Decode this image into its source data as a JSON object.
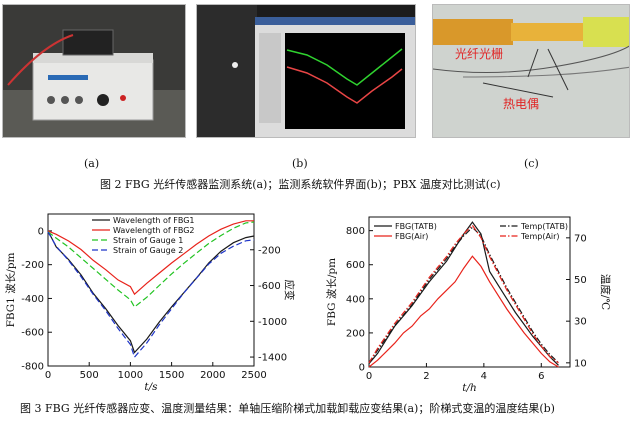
{
  "figure2": {
    "panel_labels": [
      "(a)",
      "(b)",
      "(c)"
    ],
    "photo_c_labels": {
      "grating": "光纤光栅",
      "thermocouple": "热电偶"
    },
    "caption": "图 2   FBG 光纤传感器监测系统(a)；监测系统软件界面(b)；PBX 温度对比测试(c)"
  },
  "figure3": {
    "caption": "图 3   FBG 光纤传感器应变、温度测量结果：单轴压缩阶梯式加载卸载应变结果(a)；阶梯式变温的温度结果(b)"
  },
  "chart_data": [
    {
      "type": "line",
      "xlabel": "t/s",
      "ylabel": "FBG1 波长/pm",
      "y2label": "应变",
      "xlim": [
        0,
        2500
      ],
      "ylim": [
        -800,
        100
      ],
      "y2lim": [
        -1500,
        200
      ],
      "xticks": [
        0,
        500,
        1000,
        1500,
        2000,
        2500
      ],
      "yticks": [
        0,
        -200,
        -400,
        -600,
        -800
      ],
      "y2ticks": [
        -200,
        -600,
        -1000,
        -1400
      ],
      "legend_position": "top-center",
      "series": [
        {
          "name": "Wavelength of FBG1",
          "axis": "left",
          "color": "#1a1a1a",
          "style": "solid",
          "x": [
            0,
            100,
            250,
            400,
            550,
            700,
            850,
            1000,
            1050,
            1200,
            1350,
            1500,
            1650,
            1800,
            1950,
            2100,
            2250,
            2400,
            2500
          ],
          "y": [
            0,
            -95,
            -170,
            -260,
            -370,
            -460,
            -560,
            -650,
            -720,
            -640,
            -540,
            -450,
            -365,
            -280,
            -190,
            -120,
            -70,
            -40,
            -30
          ]
        },
        {
          "name": "Wavelength of FBG2",
          "axis": "left",
          "color": "#e8231b",
          "style": "solid",
          "x": [
            0,
            100,
            250,
            400,
            550,
            700,
            850,
            1000,
            1050,
            1200,
            1350,
            1500,
            1650,
            1800,
            1950,
            2100,
            2250,
            2400,
            2500
          ],
          "y": [
            0,
            -20,
            -60,
            -110,
            -175,
            -230,
            -290,
            -330,
            -375,
            -310,
            -250,
            -190,
            -135,
            -80,
            -30,
            10,
            40,
            60,
            60
          ]
        },
        {
          "name": "Strain of Gauge 1",
          "axis": "right",
          "color": "#22c322",
          "style": "dashed",
          "x": [
            0,
            100,
            250,
            400,
            550,
            700,
            850,
            1000,
            1050,
            1200,
            1350,
            1500,
            1650,
            1800,
            1950,
            2100,
            2250,
            2400,
            2500
          ],
          "y": [
            0,
            -70,
            -170,
            -290,
            -410,
            -530,
            -650,
            -760,
            -840,
            -730,
            -600,
            -470,
            -350,
            -240,
            -130,
            -40,
            40,
            100,
            110
          ]
        },
        {
          "name": "Strain of Gauge 2",
          "axis": "right",
          "color": "#1f35c8",
          "style": "dashed",
          "x": [
            0,
            100,
            250,
            400,
            550,
            700,
            850,
            1000,
            1050,
            1200,
            1350,
            1500,
            1650,
            1800,
            1950,
            2100,
            2250,
            2400,
            2500
          ],
          "y": [
            0,
            -160,
            -320,
            -500,
            -700,
            -880,
            -1080,
            -1260,
            -1400,
            -1240,
            -1040,
            -860,
            -680,
            -520,
            -360,
            -240,
            -160,
            -100,
            -90
          ]
        }
      ]
    },
    {
      "type": "line",
      "xlabel": "t/h",
      "ylabel": "FBG 波长/pm",
      "y2label": "温度/℃",
      "xlim": [
        0,
        7
      ],
      "ylim": [
        0,
        880
      ],
      "y2lim": [
        8,
        80
      ],
      "xticks": [
        0,
        2,
        4,
        6
      ],
      "yticks": [
        0,
        200,
        400,
        600,
        800
      ],
      "y2ticks": [
        10,
        30,
        50,
        70
      ],
      "legend_position": "top-left and top-right",
      "series": [
        {
          "name": "FBG(TATB)",
          "axis": "left",
          "color": "#1a1a1a",
          "style": "solid",
          "x": [
            0,
            0.3,
            0.6,
            0.9,
            1.2,
            1.5,
            1.8,
            2.1,
            2.4,
            2.7,
            3.0,
            3.3,
            3.6,
            3.9,
            4.2,
            4.5,
            4.8,
            5.1,
            5.4,
            5.7,
            6.0,
            6.3,
            6.6
          ],
          "y": [
            20,
            80,
            160,
            240,
            300,
            360,
            430,
            500,
            560,
            620,
            700,
            780,
            850,
            780,
            560,
            480,
            400,
            320,
            250,
            180,
            120,
            60,
            10
          ]
        },
        {
          "name": "FBG(Air)",
          "axis": "left",
          "color": "#e8231b",
          "style": "solid",
          "x": [
            0,
            0.3,
            0.6,
            0.9,
            1.2,
            1.5,
            1.8,
            2.1,
            2.4,
            2.7,
            3.0,
            3.3,
            3.6,
            3.9,
            4.2,
            4.5,
            4.8,
            5.1,
            5.4,
            5.7,
            6.0,
            6.3,
            6.6
          ],
          "y": [
            0,
            40,
            90,
            140,
            200,
            240,
            300,
            340,
            400,
            450,
            500,
            580,
            650,
            590,
            500,
            420,
            340,
            270,
            200,
            140,
            80,
            30,
            0
          ]
        },
        {
          "name": "Temp(TATB)",
          "axis": "right",
          "color": "#1a1a1a",
          "style": "dashdot",
          "x": [
            0,
            0.3,
            0.6,
            0.9,
            1.2,
            1.5,
            1.8,
            2.1,
            2.4,
            2.7,
            3.0,
            3.3,
            3.6,
            3.9,
            4.2,
            4.5,
            4.8,
            5.1,
            5.4,
            5.7,
            6.0,
            6.3,
            6.6
          ],
          "y": [
            10,
            16,
            22,
            28,
            33,
            38,
            44,
            50,
            55,
            60,
            66,
            71,
            75,
            71,
            62,
            54,
            46,
            39,
            32,
            25,
            19,
            14,
            10
          ]
        },
        {
          "name": "Temp(Air)",
          "axis": "right",
          "color": "#e8231b",
          "style": "dashdot",
          "x": [
            0,
            0.3,
            0.6,
            0.9,
            1.2,
            1.5,
            1.8,
            2.1,
            2.4,
            2.7,
            3.0,
            3.3,
            3.6,
            3.9,
            4.2,
            4.5,
            4.8,
            5.1,
            5.4,
            5.7,
            6.0,
            6.3,
            6.6
          ],
          "y": [
            10,
            17,
            23,
            29,
            34,
            39,
            45,
            51,
            56,
            61,
            67,
            72,
            76,
            70,
            61,
            53,
            45,
            38,
            31,
            24,
            18,
            13,
            10
          ]
        }
      ]
    }
  ]
}
